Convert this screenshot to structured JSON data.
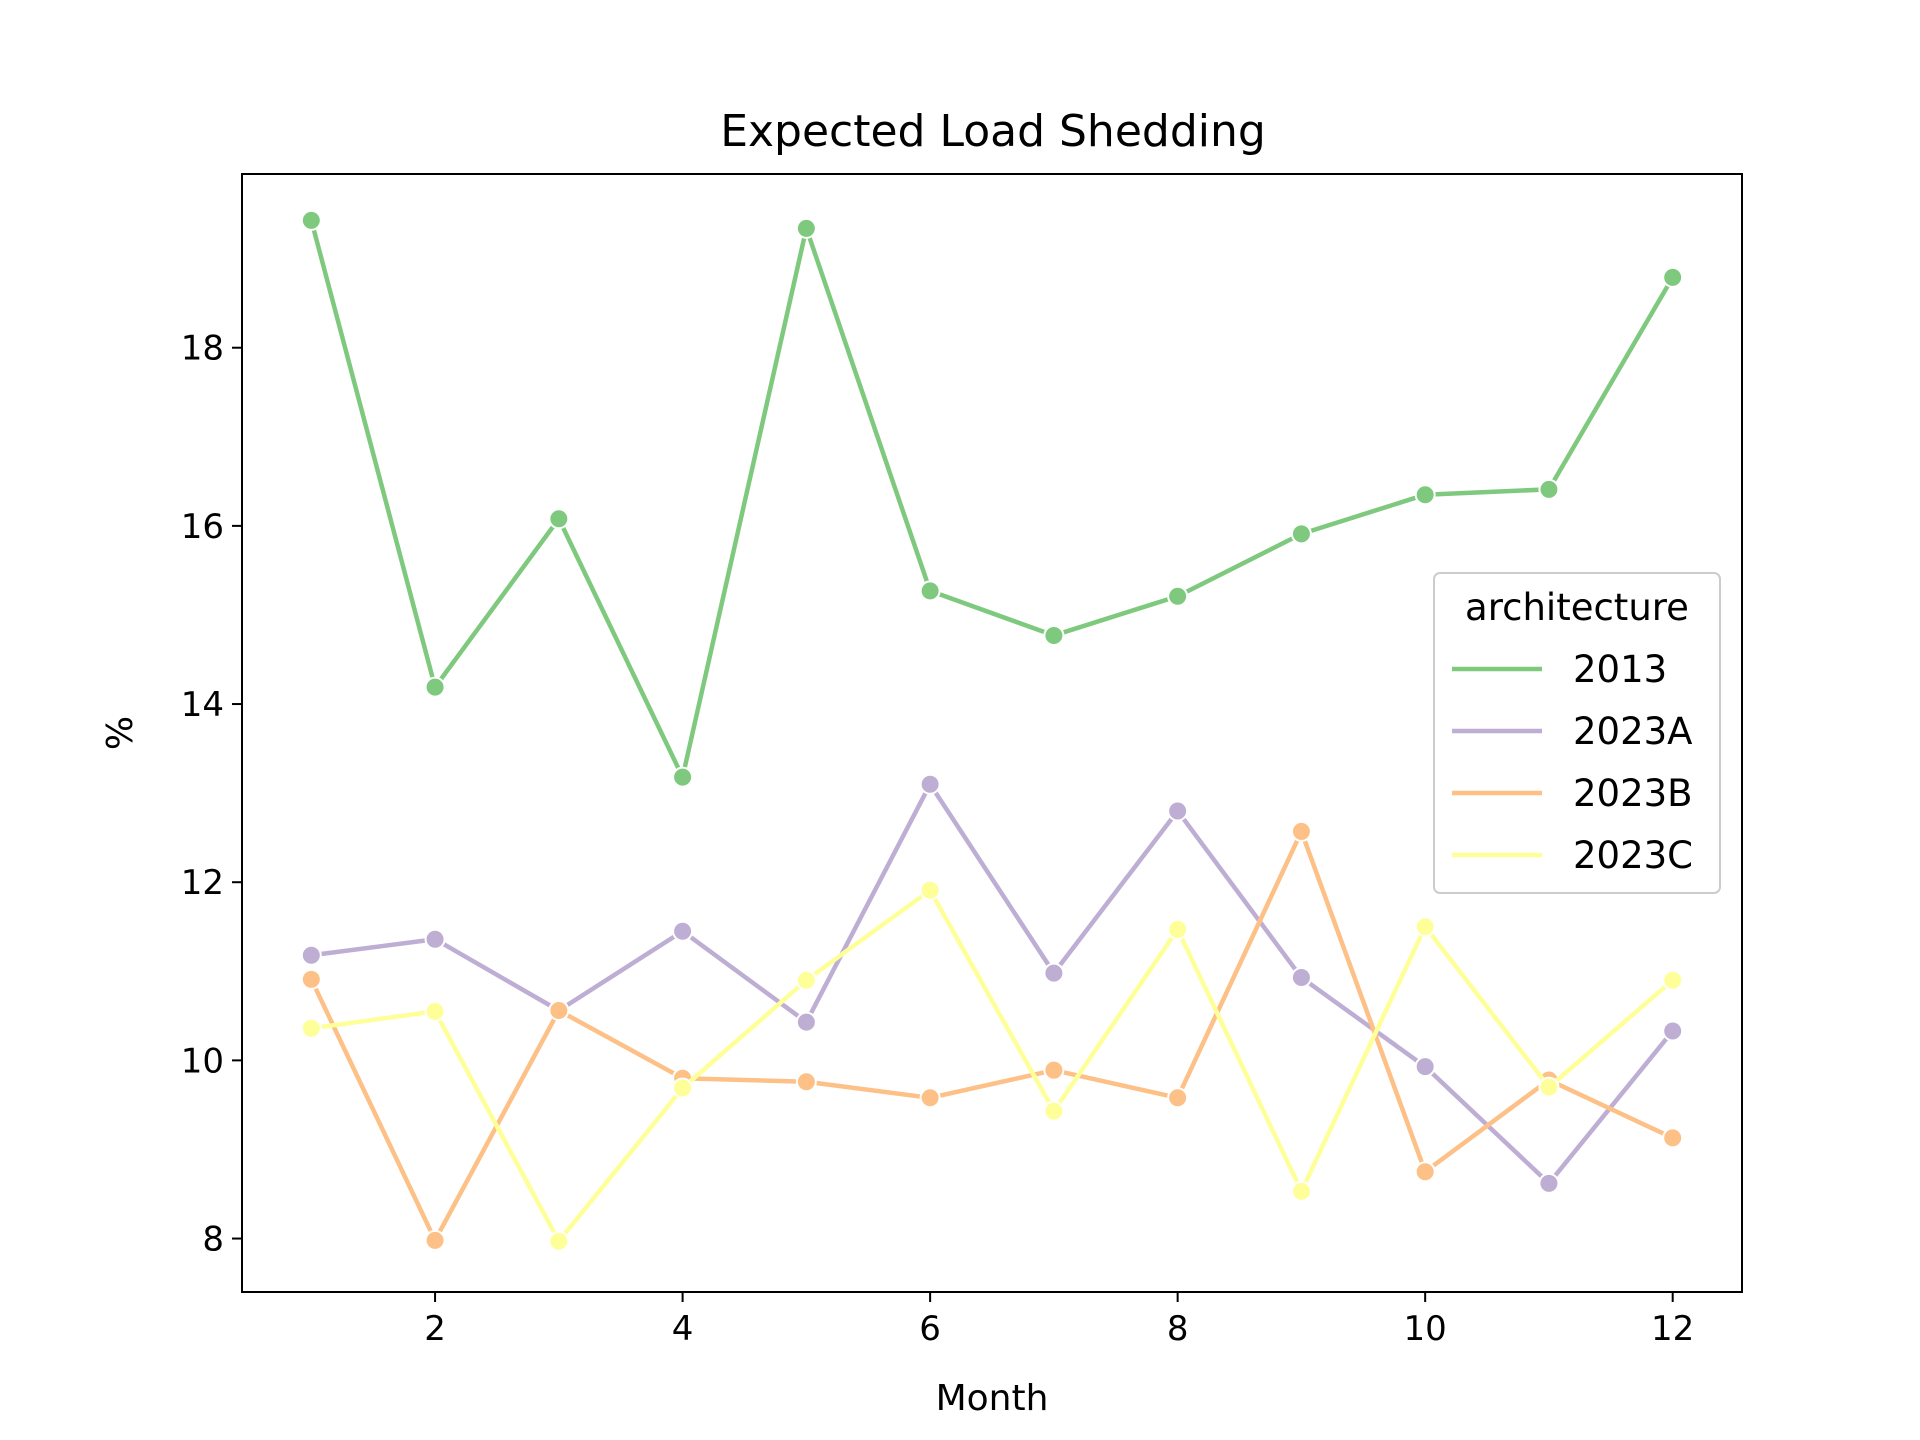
{
  "chart_data": {
    "type": "line",
    "title": "Expected Load Shedding",
    "xlabel": "Month",
    "ylabel": "%",
    "xlim": [
      0.44,
      12.56
    ],
    "ylim": [
      7.4,
      19.95
    ],
    "x_ticks": [
      2,
      4,
      6,
      8,
      10,
      12
    ],
    "y_ticks": [
      8,
      10,
      12,
      14,
      16,
      18
    ],
    "grid": false,
    "legend": {
      "title": "architecture",
      "placement": "center-right"
    },
    "x": [
      1,
      2,
      3,
      4,
      5,
      6,
      7,
      8,
      9,
      10,
      11,
      12
    ],
    "series": [
      {
        "name": "2013",
        "color": "#7fc97f",
        "values": [
          19.43,
          14.19,
          16.08,
          13.18,
          19.34,
          15.27,
          14.77,
          15.21,
          15.91,
          16.35,
          16.41,
          18.79
        ]
      },
      {
        "name": "2023A",
        "color": "#beaed4",
        "values": [
          11.18,
          11.36,
          10.56,
          11.45,
          10.43,
          13.1,
          10.98,
          12.8,
          10.93,
          9.93,
          8.62,
          10.33
        ]
      },
      {
        "name": "2023B",
        "color": "#fdc086",
        "values": [
          10.91,
          7.98,
          10.56,
          9.8,
          9.76,
          9.58,
          9.89,
          9.58,
          12.57,
          8.75,
          9.78,
          9.13
        ]
      },
      {
        "name": "2023C",
        "color": "#ffff99",
        "values": [
          10.36,
          10.55,
          7.97,
          9.69,
          10.9,
          11.91,
          9.43,
          11.47,
          8.53,
          11.5,
          9.7,
          10.9
        ]
      }
    ]
  }
}
